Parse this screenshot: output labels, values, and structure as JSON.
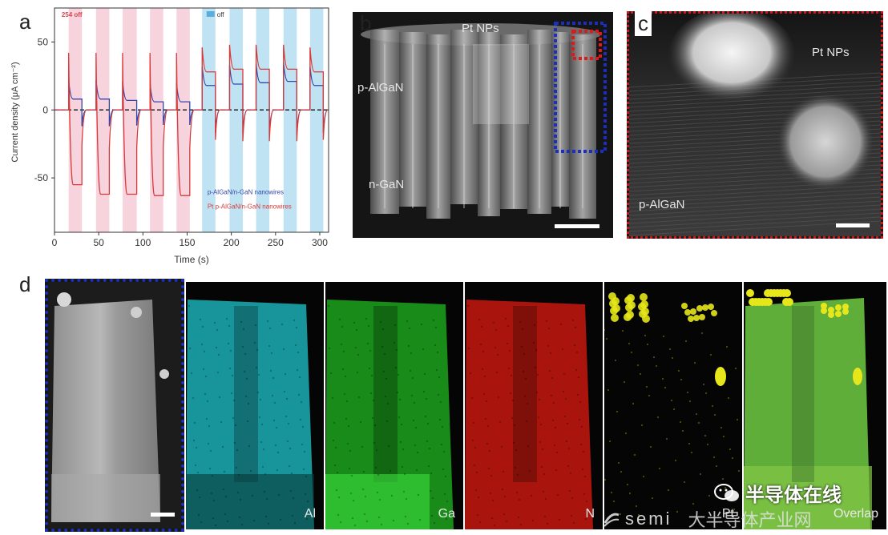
{
  "panels": {
    "a": {
      "letter": "a"
    },
    "b": {
      "letter": "b",
      "labels": {
        "pt": "Pt NPs",
        "p": "p-AlGaN",
        "n": "n-GaN"
      }
    },
    "c": {
      "letter": "c",
      "labels": {
        "pt": "Pt NPs",
        "p": "p-AlGaN"
      }
    },
    "d": {
      "letter": "d",
      "maps": [
        {
          "label": "",
          "name": "haadf-map"
        },
        {
          "label": "Al",
          "name": "al-map",
          "color": "#1fc6cc"
        },
        {
          "label": "Ga",
          "name": "ga-map",
          "color": "#1fb81f"
        },
        {
          "label": "N",
          "name": "n-map",
          "color": "#e01a10"
        },
        {
          "label": "Pt",
          "name": "pt-map",
          "color": "#e6e61a"
        },
        {
          "label": "Overlap",
          "name": "overlap-map",
          "color": "#55aa30"
        }
      ]
    }
  },
  "chart_data": {
    "type": "line",
    "xlabel": "Time (s)",
    "ylabel": "Current density (μA cm⁻²)",
    "xlim": [
      0,
      310
    ],
    "ylim": [
      -90,
      75
    ],
    "xticks": [
      0,
      50,
      100,
      150,
      200,
      250,
      300
    ],
    "yticks": [
      -50,
      0,
      50
    ],
    "legend_top": [
      {
        "text": "254 off",
        "color": "#d9434b"
      },
      {
        "text": "off",
        "color": "#5aaedc"
      }
    ],
    "series": [
      {
        "name": "p-AlGaN/n-GaN nanowires",
        "color": "#3347a8",
        "on_values_red_phase": [
          8,
          8,
          7,
          6,
          6
        ],
        "on_values_blue_phase": [
          18,
          19,
          20,
          21,
          18
        ]
      },
      {
        "name": "Pt p-AlGaN/n-GaN nanowires",
        "color": "#d83a3a",
        "on_values_red_phase": [
          -55,
          -62,
          -62,
          -63,
          -63
        ],
        "on_values_blue_phase": [
          28,
          30,
          30,
          30,
          28
        ]
      }
    ],
    "pink_on_intervals": [
      [
        16,
        31
      ],
      [
        47,
        62
      ],
      [
        77,
        93
      ],
      [
        108,
        123
      ],
      [
        138,
        153
      ]
    ],
    "blue_on_intervals": [
      [
        167,
        182
      ],
      [
        198,
        213
      ],
      [
        228,
        243
      ],
      [
        259,
        274
      ],
      [
        289,
        304
      ]
    ],
    "baseline": 0
  },
  "watermark": {
    "wechat": "半导体在线",
    "brand": "semi",
    "chinese": "大半导体产业网"
  },
  "colors": {
    "pink_shade": "#f7d3dd",
    "blue_shade": "#bfe3f3",
    "blue_frame": "#1a2fbf",
    "red_frame": "#d0161b"
  }
}
